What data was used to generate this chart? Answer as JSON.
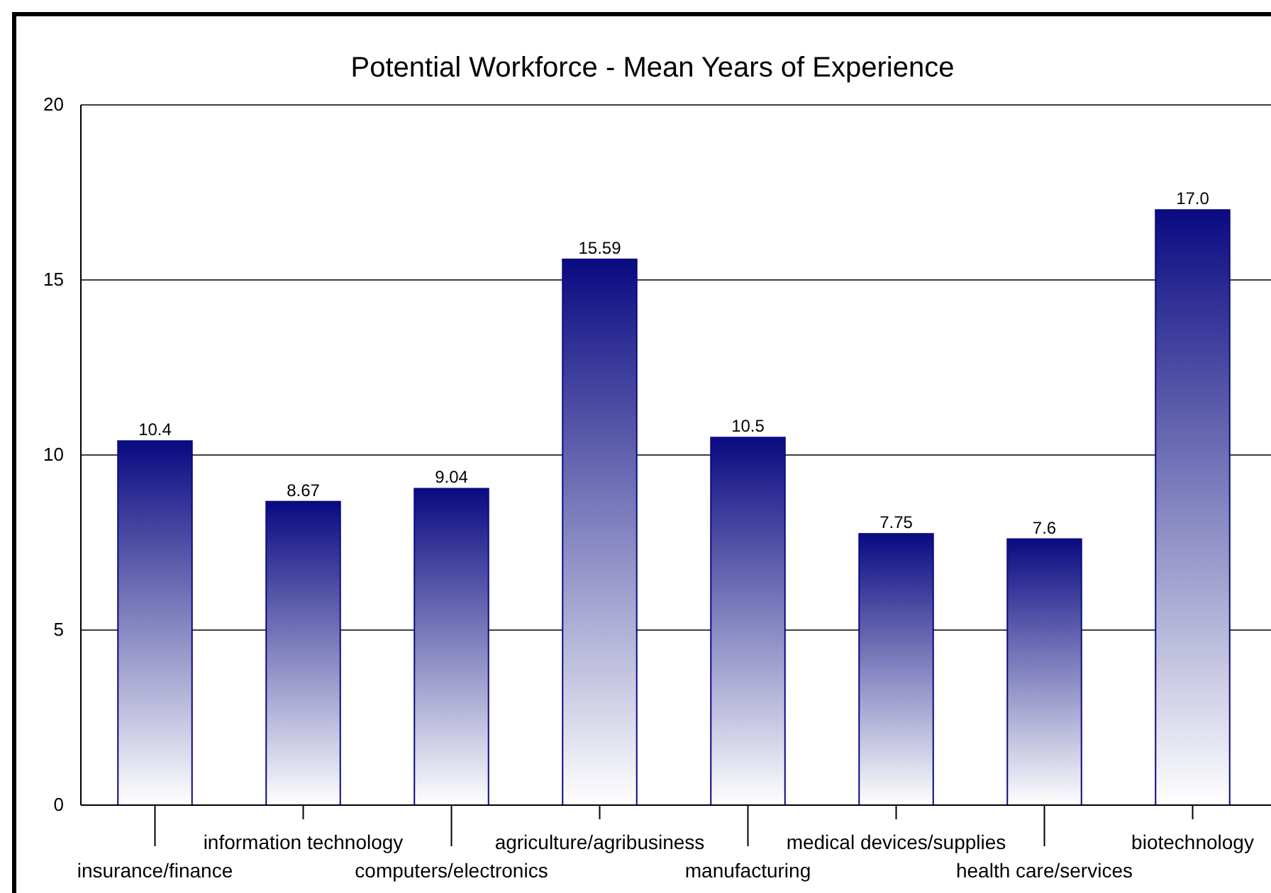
{
  "chart_data": {
    "type": "bar",
    "title": "Potential Workforce - Mean Years of Experience",
    "categories": [
      "insurance/finance",
      "information technology",
      "computers/electronics",
      "agriculture/agribusiness",
      "manufacturing",
      "medical devices/supplies",
      "health care/services",
      "biotechnology"
    ],
    "values": [
      10.4,
      8.67,
      9.04,
      15.59,
      10.5,
      7.75,
      7.6,
      17.0
    ],
    "value_labels": [
      "10.4",
      "8.67",
      "9.04",
      "15.59",
      "10.5",
      "7.75",
      "7.6",
      "17.0"
    ],
    "color": "#0a0a82",
    "ylim": [
      0,
      20
    ],
    "yticks": [
      0,
      5,
      10,
      15,
      20
    ],
    "grid": "y"
  }
}
